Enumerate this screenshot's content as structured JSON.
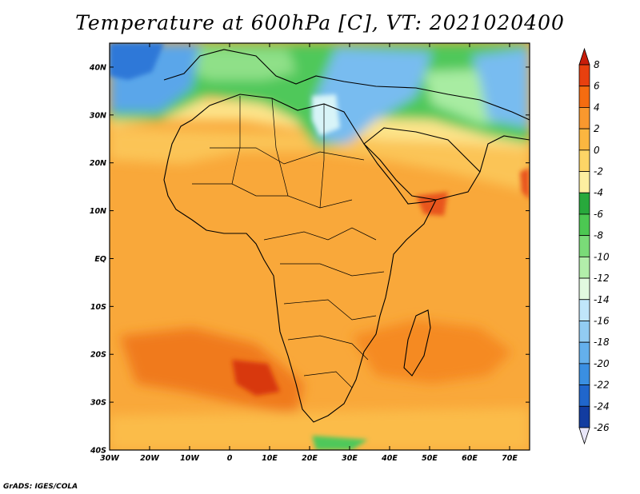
{
  "title": "Temperature at 600hPa [C], VT: 2021020400",
  "credit": "GrADS: IGES/COLA",
  "map": {
    "lon_ticks": [
      "30W",
      "20W",
      "10W",
      "0",
      "10E",
      "20E",
      "30E",
      "40E",
      "50E",
      "60E",
      "70E"
    ],
    "lat_ticks": [
      "40N",
      "30N",
      "20N",
      "10N",
      "EQ",
      "10S",
      "20S",
      "30S",
      "40S"
    ],
    "extent": {
      "lon_min": -30,
      "lon_max": 75,
      "lat_min": -40,
      "lat_max": 45
    }
  },
  "colorbar": {
    "labels": [
      "8",
      "6",
      "4",
      "2",
      "0",
      "-2",
      "-4",
      "-6",
      "-8",
      "-10",
      "-12",
      "-14",
      "-16",
      "-18",
      "-20",
      "-22",
      "-24",
      "-26"
    ],
    "colors": [
      "#c81d0a",
      "#e8400f",
      "#f56c10",
      "#f9982e",
      "#fbb640",
      "#fdd566",
      "#fdefa0",
      "#28a93c",
      "#4cc852",
      "#7adb78",
      "#b2eeaa",
      "#e2fae0",
      "#c0e6fa",
      "#92ccf2",
      "#64b0ec",
      "#3a8fe2",
      "#2066cc",
      "#123ca0",
      "#0a1a62"
    ],
    "colors_note": "top (over 8) to bottom (under -26)"
  }
}
